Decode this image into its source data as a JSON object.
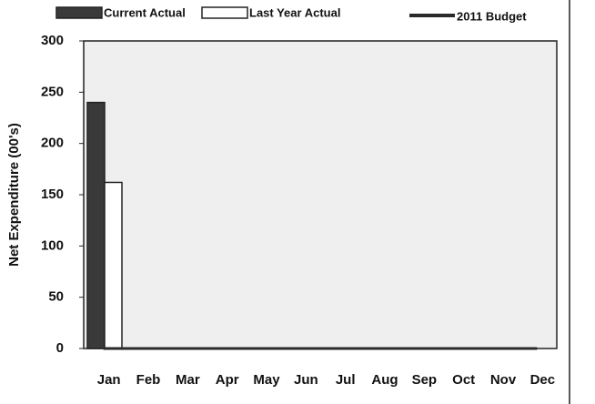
{
  "chart_data": {
    "type": "bar",
    "y_label": "Net Expenditure (00's)",
    "categories": [
      "Jan",
      "Feb",
      "Mar",
      "Apr",
      "May",
      "Jun",
      "Jul",
      "Aug",
      "Sep",
      "Oct",
      "Nov",
      "Dec"
    ],
    "series": [
      {
        "name": "Current Actual",
        "color": "#3a3a3a",
        "kind": "bar",
        "values": [
          240,
          null,
          null,
          null,
          null,
          null,
          null,
          null,
          null,
          null,
          null,
          null
        ]
      },
      {
        "name": "Last Year Actual",
        "color": "#ffffff",
        "kind": "bar",
        "values": [
          162,
          null,
          null,
          null,
          null,
          null,
          null,
          null,
          null,
          null,
          null,
          null
        ]
      },
      {
        "name": "2011 Budget",
        "color": "#2a2a2a",
        "kind": "line",
        "values": [
          0,
          0,
          0,
          0,
          0,
          0,
          0,
          0,
          0,
          0,
          0,
          0
        ]
      }
    ],
    "ylim": [
      0,
      300
    ],
    "yticks": [
      0,
      50,
      100,
      150,
      200,
      250,
      300
    ],
    "grid": false
  }
}
